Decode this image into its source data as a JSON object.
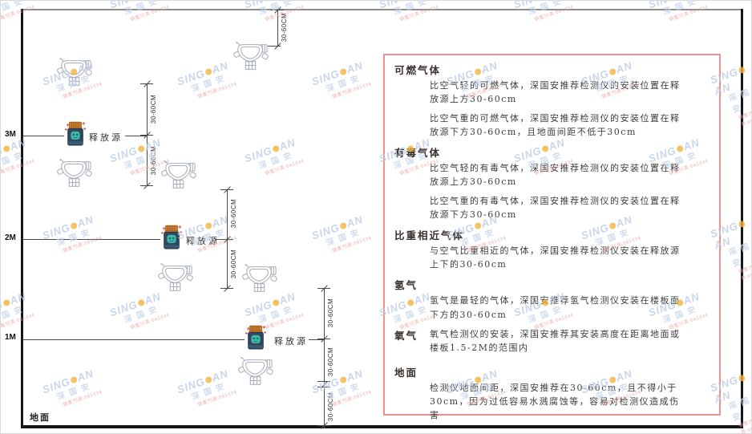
{
  "scene": {
    "heights": [
      "3M",
      "2M",
      "1M"
    ],
    "release_source_label": "释放源",
    "ground_label": "地面",
    "dim_label": "30-60CM"
  },
  "panel": {
    "sections": [
      {
        "title": "可燃气体",
        "paras": [
          "比空气轻的可燃气体，深国安推荐检测仪的安装位置在释放源上方30-60cm",
          "比空气重的可燃气体，深国安推荐检测仪的安装位置在释放源下方30-60cm，且地面间距不低于30cm"
        ]
      },
      {
        "title": "有毒气体",
        "paras": [
          "比空气轻的有毒气体，深国安推荐检测仪的安装位置在释放源上方30-60cm",
          "比空气重的有毒气体，深国安推荐检测仪的安装位置在释放源下方30-60cm"
        ]
      },
      {
        "title": "比重相近气体",
        "paras": [
          "与空气比重相近的气体，深国安推荐检测仪安装在释放源上下的30-60cm"
        ]
      },
      {
        "title": "氢气",
        "paras": [
          "氢气是最轻的气体，深国安推荐氢气检测仪安装在楼板面下方的30-60cm"
        ]
      },
      {
        "title": "氧气",
        "paras": [
          "氧气检测仪的安装，深国安推荐其安装高度在距离地面或楼板1.5-2M的范围内"
        ]
      },
      {
        "title": "地面",
        "paras": [
          "检测仪地面间距，深国安推荐在30-60cm，且不得小于30cm，因为过低容易水溅腐蚀等，容易对检测仪造成伤害"
        ]
      }
    ]
  },
  "watermark": {
    "brand_left": "SING",
    "brand_right": "AN",
    "cn": "深国安",
    "contact": "销售代表:661434"
  },
  "colors": {
    "panel_border": "#f29090",
    "watermark_blue": "#bccbe3",
    "brand_dot_orange": "#f4b13d",
    "source_body": "#32475c",
    "source_cap": "#c87a2e",
    "source_face": "#3fb8ae"
  }
}
